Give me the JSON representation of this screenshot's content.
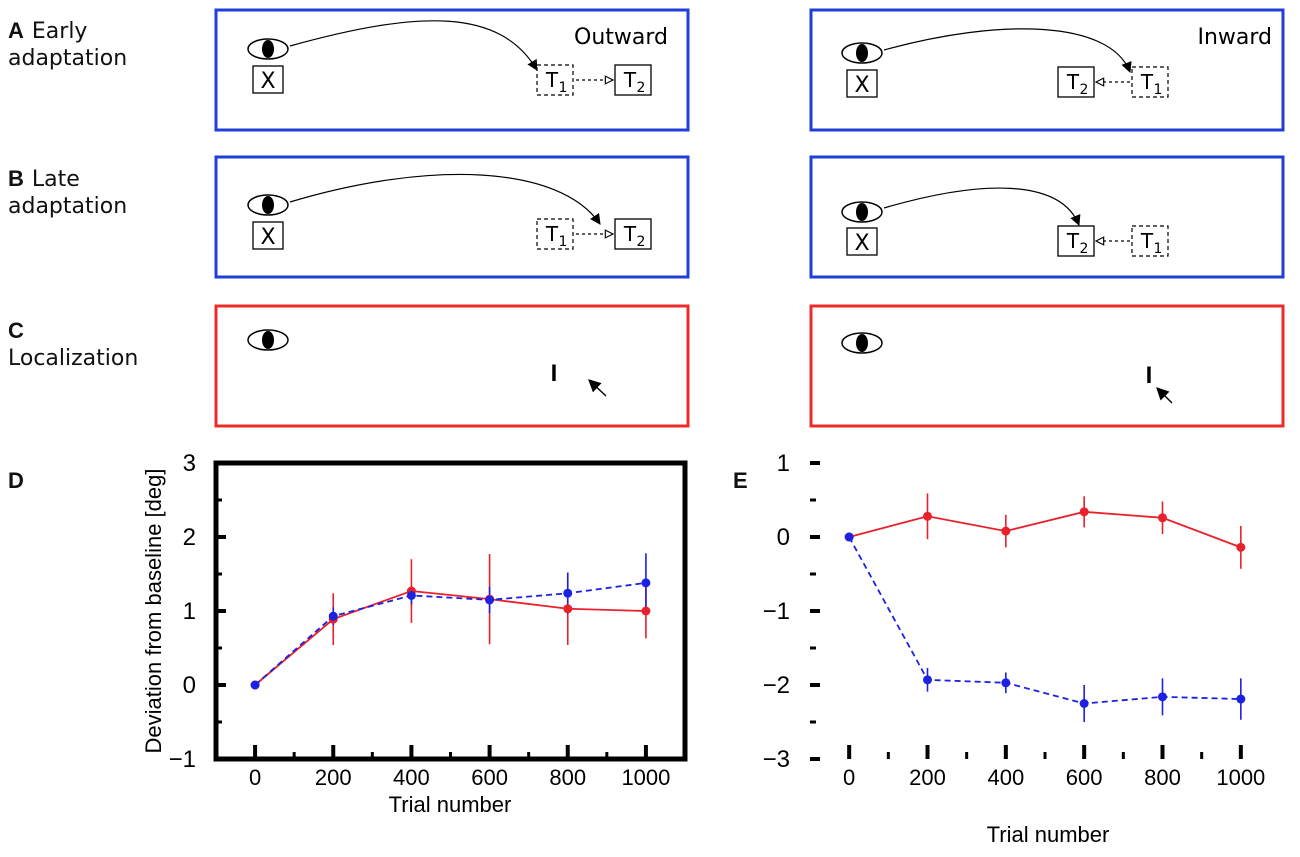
{
  "panels": {
    "A": {
      "letter": "A",
      "line1": "Early",
      "line2": "adaptation"
    },
    "B": {
      "letter": "B",
      "line1": "Late",
      "line2": "adaptation"
    },
    "C": {
      "letter": "C",
      "line1": "",
      "line2": "Localization"
    },
    "D": {
      "letter": "D"
    },
    "E": {
      "letter": "E"
    }
  },
  "diagrams": {
    "outward_label": "Outward",
    "inward_label": "Inward",
    "fixation_symbol": "X",
    "target1_label": "T",
    "target1_sub": "1",
    "target2_label": "T",
    "target2_sub": "2",
    "probe_symbol": "I",
    "colors": {
      "adaptation_frame": "#1f3fd8",
      "localization_frame": "#ee2b2b"
    }
  },
  "chart_data": [
    {
      "panel": "D",
      "type": "line",
      "title": "",
      "xlabel": "Trial number",
      "ylabel": "Deviation from baseline [deg]",
      "xlim": [
        -100,
        1100
      ],
      "ylim": [
        -1,
        3
      ],
      "xticks": [
        0,
        200,
        400,
        600,
        800,
        1000
      ],
      "yticks": [
        -1,
        0,
        1,
        2,
        3
      ],
      "ytick_labels": [
        "−1",
        "0",
        "1",
        "2",
        "3"
      ],
      "series": [
        {
          "name": "localization",
          "color": "#e8212c",
          "style": "solid",
          "x": [
            0,
            200,
            400,
            600,
            800,
            1000
          ],
          "y": [
            0,
            0.89,
            1.27,
            1.16,
            1.03,
            1.0
          ],
          "err": [
            0,
            0.35,
            0.43,
            0.61,
            0.49,
            0.37
          ]
        },
        {
          "name": "adaptation",
          "color": "#1d22e0",
          "style": "dashed",
          "x": [
            0,
            200,
            400,
            600,
            800,
            1000
          ],
          "y": [
            0,
            0.93,
            1.21,
            1.15,
            1.24,
            1.38
          ],
          "err": [
            0,
            0.12,
            0.12,
            0.18,
            0.28,
            0.4
          ]
        }
      ]
    },
    {
      "panel": "E",
      "type": "line",
      "title": "",
      "xlabel": "Trial number",
      "ylabel": "",
      "xlim": [
        -100,
        1100
      ],
      "ylim": [
        -3,
        1
      ],
      "xticks": [
        0,
        200,
        400,
        600,
        800,
        1000
      ],
      "yticks": [
        -3,
        -2,
        -1,
        0,
        1
      ],
      "ytick_labels": [
        "−3",
        "−2",
        "−1",
        "0",
        "1"
      ],
      "series": [
        {
          "name": "localization",
          "color": "#e8212c",
          "style": "solid",
          "x": [
            0,
            200,
            400,
            600,
            800,
            1000
          ],
          "y": [
            0,
            0.28,
            0.08,
            0.34,
            0.26,
            -0.14
          ],
          "err": [
            0,
            0.31,
            0.22,
            0.21,
            0.22,
            0.29
          ]
        },
        {
          "name": "adaptation",
          "color": "#1d22e0",
          "style": "dashed",
          "x": [
            0,
            200,
            400,
            600,
            800,
            1000
          ],
          "y": [
            0,
            -1.93,
            -1.97,
            -2.25,
            -2.16,
            -2.19
          ],
          "err": [
            0,
            0.16,
            0.14,
            0.25,
            0.25,
            0.28
          ]
        }
      ]
    }
  ]
}
